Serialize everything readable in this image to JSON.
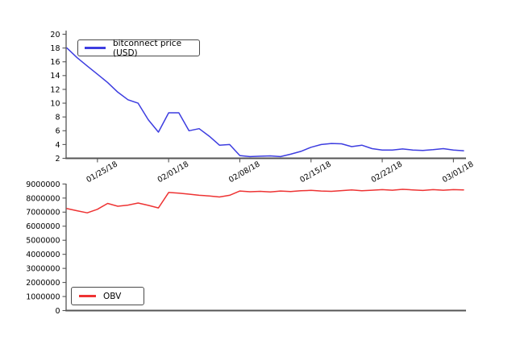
{
  "figure": {
    "background": "#ffffff",
    "spine_color": "#555555",
    "tick_label_color": "#000000"
  },
  "chart_data": [
    {
      "type": "line",
      "id": "price",
      "title": "",
      "legend": {
        "label": "bitconnect price (USD)",
        "position": "upper left"
      },
      "grid": false,
      "ylim": [
        2,
        20
      ],
      "y_ticks": [
        2,
        4,
        6,
        8,
        10,
        12,
        14,
        16,
        18,
        20
      ],
      "x_tick_labels": [
        "01/25/18",
        "02/01/18",
        "02/08/18",
        "02/15/18",
        "02/22/18",
        "03/01/18"
      ],
      "x_tick_indices": [
        3,
        10,
        17,
        24,
        31,
        38
      ],
      "x": [
        "01/22/18",
        "01/23/18",
        "01/24/18",
        "01/25/18",
        "01/26/18",
        "01/27/18",
        "01/28/18",
        "01/29/18",
        "01/30/18",
        "01/31/18",
        "02/01/18",
        "02/02/18",
        "02/03/18",
        "02/04/18",
        "02/05/18",
        "02/06/18",
        "02/07/18",
        "02/08/18",
        "02/09/18",
        "02/10/18",
        "02/11/18",
        "02/12/18",
        "02/13/18",
        "02/14/18",
        "02/15/18",
        "02/16/18",
        "02/17/18",
        "02/18/18",
        "02/19/18",
        "02/20/18",
        "02/21/18",
        "02/22/18",
        "02/23/18",
        "02/24/18",
        "02/25/18",
        "02/26/18",
        "02/27/18",
        "02/28/18",
        "03/01/18",
        "03/02/18"
      ],
      "series": [
        {
          "name": "bitconnect price (USD)",
          "color": "#3d3de0",
          "values": [
            18.0,
            16.6,
            15.4,
            14.2,
            13.0,
            11.6,
            10.5,
            10.0,
            7.6,
            5.8,
            8.6,
            8.6,
            6.0,
            6.3,
            5.2,
            3.9,
            4.0,
            2.4,
            2.25,
            2.3,
            2.35,
            2.25,
            2.6,
            3.0,
            3.6,
            4.0,
            4.15,
            4.1,
            3.7,
            3.9,
            3.4,
            3.2,
            3.2,
            3.35,
            3.2,
            3.15,
            3.25,
            3.4,
            3.2,
            3.1
          ]
        }
      ]
    },
    {
      "type": "line",
      "id": "obv",
      "title": "",
      "legend": {
        "label": "OBV",
        "position": "lower left"
      },
      "grid": false,
      "ylim": [
        0,
        9000000
      ],
      "y_ticks": [
        0,
        1000000,
        2000000,
        3000000,
        4000000,
        5000000,
        6000000,
        7000000,
        8000000,
        9000000
      ],
      "x_tick_labels": [],
      "x_tick_indices": [],
      "x": [
        "01/22/18",
        "01/23/18",
        "01/24/18",
        "01/25/18",
        "01/26/18",
        "01/27/18",
        "01/28/18",
        "01/29/18",
        "01/30/18",
        "01/31/18",
        "02/01/18",
        "02/02/18",
        "02/03/18",
        "02/04/18",
        "02/05/18",
        "02/06/18",
        "02/07/18",
        "02/08/18",
        "02/09/18",
        "02/10/18",
        "02/11/18",
        "02/12/18",
        "02/13/18",
        "02/14/18",
        "02/15/18",
        "02/16/18",
        "02/17/18",
        "02/18/18",
        "02/19/18",
        "02/20/18",
        "02/21/18",
        "02/22/18",
        "02/23/18",
        "02/24/18",
        "02/25/18",
        "02/26/18",
        "02/27/18",
        "02/28/18",
        "03/01/18",
        "03/02/18"
      ],
      "series": [
        {
          "name": "OBV",
          "color": "#ee3333",
          "values": [
            7250000,
            7100000,
            6950000,
            7200000,
            7620000,
            7420000,
            7500000,
            7650000,
            7480000,
            7300000,
            8400000,
            8350000,
            8280000,
            8200000,
            8150000,
            8080000,
            8200000,
            8500000,
            8450000,
            8480000,
            8430000,
            8500000,
            8460000,
            8520000,
            8550000,
            8500000,
            8480000,
            8530000,
            8580000,
            8520000,
            8560000,
            8600000,
            8560000,
            8620000,
            8580000,
            8540000,
            8600000,
            8560000,
            8600000,
            8580000
          ]
        }
      ]
    }
  ]
}
